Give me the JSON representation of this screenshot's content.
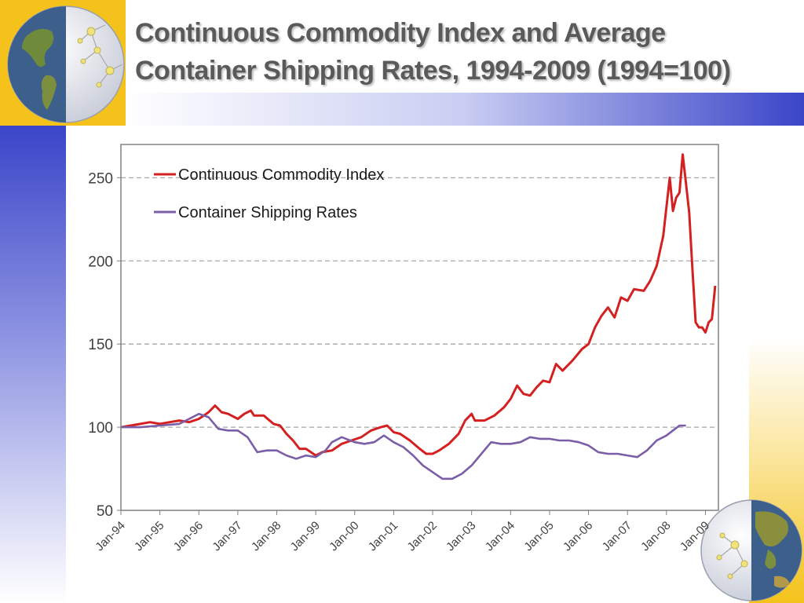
{
  "slide": {
    "title_line1": "Continuous Commodity Index and Average",
    "title_line2": "Container Shipping Rates, 1994-2009 (1994=100)",
    "accent_blue": "#3a45c8",
    "accent_yellow": "#f4c21a",
    "decorations": [
      "globe-americas-icon",
      "globe-asia-icon"
    ]
  },
  "chart_data": {
    "type": "line",
    "title": "",
    "xlabel": "",
    "ylabel": "",
    "ylim": [
      50,
      270
    ],
    "yticks": [
      50,
      100,
      150,
      200,
      250
    ],
    "xlim": [
      "1994-01",
      "2009-05"
    ],
    "xtick_labels": [
      "Jan-94",
      "Jan-95",
      "Jan-96",
      "Jan-97",
      "Jan-98",
      "Jan-99",
      "Jan-00",
      "Jan-01",
      "Jan-02",
      "Jan-03",
      "Jan-04",
      "Jan-05",
      "Jan-06",
      "Jan-07",
      "Jan-08",
      "Jan-09"
    ],
    "grid": "horizontal dashed",
    "legend_position": "top-left",
    "series": [
      {
        "name": "Continuous Commodity Index",
        "color": "#d42020",
        "points": [
          [
            "1994-01",
            100
          ],
          [
            "1994-04",
            101
          ],
          [
            "1994-07",
            102
          ],
          [
            "1994-10",
            103
          ],
          [
            "1995-01",
            102
          ],
          [
            "1995-04",
            103
          ],
          [
            "1995-07",
            104
          ],
          [
            "1995-10",
            103
          ],
          [
            "1996-01",
            105
          ],
          [
            "1996-04",
            109
          ],
          [
            "1996-06",
            113
          ],
          [
            "1996-08",
            109
          ],
          [
            "1996-10",
            108
          ],
          [
            "1997-01",
            105
          ],
          [
            "1997-03",
            108
          ],
          [
            "1997-05",
            110
          ],
          [
            "1997-06",
            107
          ],
          [
            "1997-09",
            107
          ],
          [
            "1997-12",
            102
          ],
          [
            "1998-02",
            101
          ],
          [
            "1998-04",
            96
          ],
          [
            "1998-06",
            92
          ],
          [
            "1998-08",
            87
          ],
          [
            "1998-10",
            87
          ],
          [
            "1999-01",
            83
          ],
          [
            "1999-03",
            85
          ],
          [
            "1999-06",
            86
          ],
          [
            "1999-09",
            90
          ],
          [
            "1999-12",
            92
          ],
          [
            "2000-03",
            94
          ],
          [
            "2000-06",
            98
          ],
          [
            "2000-09",
            100
          ],
          [
            "2000-11",
            101
          ],
          [
            "2001-01",
            97
          ],
          [
            "2001-03",
            96
          ],
          [
            "2001-06",
            92
          ],
          [
            "2001-09",
            87
          ],
          [
            "2001-11",
            84
          ],
          [
            "2002-01",
            84
          ],
          [
            "2002-03",
            86
          ],
          [
            "2002-06",
            90
          ],
          [
            "2002-09",
            96
          ],
          [
            "2002-11",
            104
          ],
          [
            "2003-01",
            108
          ],
          [
            "2003-02",
            104
          ],
          [
            "2003-05",
            104
          ],
          [
            "2003-08",
            107
          ],
          [
            "2003-11",
            112
          ],
          [
            "2004-01",
            117
          ],
          [
            "2004-03",
            125
          ],
          [
            "2004-05",
            120
          ],
          [
            "2004-07",
            119
          ],
          [
            "2004-09",
            124
          ],
          [
            "2004-11",
            128
          ],
          [
            "2005-01",
            127
          ],
          [
            "2005-03",
            138
          ],
          [
            "2005-05",
            134
          ],
          [
            "2005-08",
            140
          ],
          [
            "2005-11",
            147
          ],
          [
            "2006-01",
            150
          ],
          [
            "2006-03",
            160
          ],
          [
            "2006-05",
            167
          ],
          [
            "2006-07",
            172
          ],
          [
            "2006-09",
            166
          ],
          [
            "2006-11",
            178
          ],
          [
            "2007-01",
            176
          ],
          [
            "2007-03",
            183
          ],
          [
            "2007-06",
            182
          ],
          [
            "2007-08",
            188
          ],
          [
            "2007-10",
            197
          ],
          [
            "2007-12",
            215
          ],
          [
            "2008-02",
            250
          ],
          [
            "2008-03",
            230
          ],
          [
            "2008-04",
            238
          ],
          [
            "2008-05",
            241
          ],
          [
            "2008-06",
            264
          ],
          [
            "2008-07",
            247
          ],
          [
            "2008-08",
            229
          ],
          [
            "2008-09",
            195
          ],
          [
            "2008-10",
            163
          ],
          [
            "2008-11",
            160
          ],
          [
            "2008-12",
            160
          ],
          [
            "2009-01",
            157
          ],
          [
            "2009-02",
            163
          ],
          [
            "2009-03",
            165
          ],
          [
            "2009-04",
            185
          ]
        ]
      },
      {
        "name": "Container Shipping Rates",
        "color": "#7a5ea8",
        "points": [
          [
            "1994-01",
            100
          ],
          [
            "1994-07",
            100
          ],
          [
            "1995-01",
            101
          ],
          [
            "1995-07",
            102
          ],
          [
            "1995-10",
            105
          ],
          [
            "1996-01",
            108
          ],
          [
            "1996-04",
            106
          ],
          [
            "1996-07",
            99
          ],
          [
            "1996-10",
            98
          ],
          [
            "1997-01",
            98
          ],
          [
            "1997-04",
            94
          ],
          [
            "1997-07",
            85
          ],
          [
            "1997-10",
            86
          ],
          [
            "1998-01",
            86
          ],
          [
            "1998-04",
            83
          ],
          [
            "1998-07",
            81
          ],
          [
            "1998-10",
            83
          ],
          [
            "1999-01",
            82
          ],
          [
            "1999-04",
            86
          ],
          [
            "1999-06",
            91
          ],
          [
            "1999-09",
            94
          ],
          [
            "2000-01",
            91
          ],
          [
            "2000-04",
            90
          ],
          [
            "2000-07",
            91
          ],
          [
            "2000-10",
            95
          ],
          [
            "2001-01",
            91
          ],
          [
            "2001-04",
            88
          ],
          [
            "2001-07",
            83
          ],
          [
            "2001-10",
            77
          ],
          [
            "2002-01",
            73
          ],
          [
            "2002-04",
            69
          ],
          [
            "2002-07",
            69
          ],
          [
            "2002-10",
            72
          ],
          [
            "2003-01",
            77
          ],
          [
            "2003-04",
            84
          ],
          [
            "2003-07",
            91
          ],
          [
            "2003-10",
            90
          ],
          [
            "2004-01",
            90
          ],
          [
            "2004-04",
            91
          ],
          [
            "2004-07",
            94
          ],
          [
            "2004-10",
            93
          ],
          [
            "2005-01",
            93
          ],
          [
            "2005-04",
            92
          ],
          [
            "2005-07",
            92
          ],
          [
            "2005-10",
            91
          ],
          [
            "2006-01",
            89
          ],
          [
            "2006-04",
            85
          ],
          [
            "2006-07",
            84
          ],
          [
            "2006-10",
            84
          ],
          [
            "2007-01",
            83
          ],
          [
            "2007-04",
            82
          ],
          [
            "2007-07",
            86
          ],
          [
            "2007-10",
            92
          ],
          [
            "2008-01",
            95
          ],
          [
            "2008-03",
            98
          ],
          [
            "2008-05",
            101
          ],
          [
            "2008-07",
            101
          ]
        ]
      }
    ]
  }
}
